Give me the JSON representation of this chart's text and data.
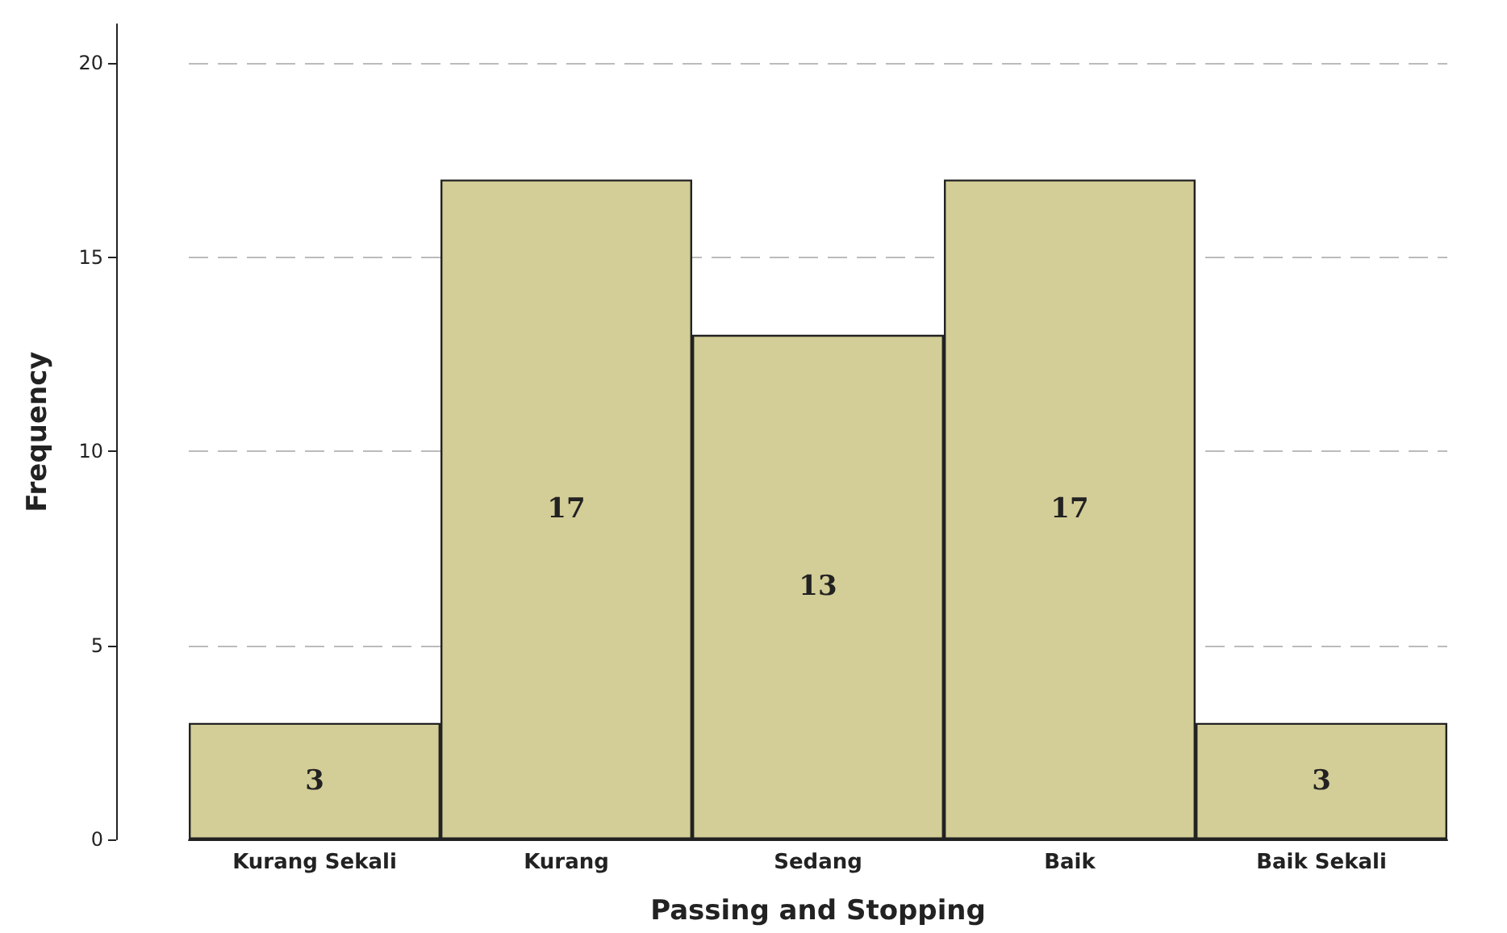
{
  "chart_data": {
    "type": "bar",
    "xlabel": "Passing and Stopping",
    "ylabel": "Frequency",
    "categories": [
      "Kurang Sekali",
      "Kurang",
      "Sedang",
      "Baik",
      "Baik Sekali"
    ],
    "values": [
      3,
      17,
      13,
      17,
      3
    ],
    "color": "#d3cd97",
    "ylim": [
      0,
      21
    ],
    "yticks": [
      0,
      5,
      10,
      15,
      20
    ],
    "grid": "y",
    "data_labels": true
  }
}
